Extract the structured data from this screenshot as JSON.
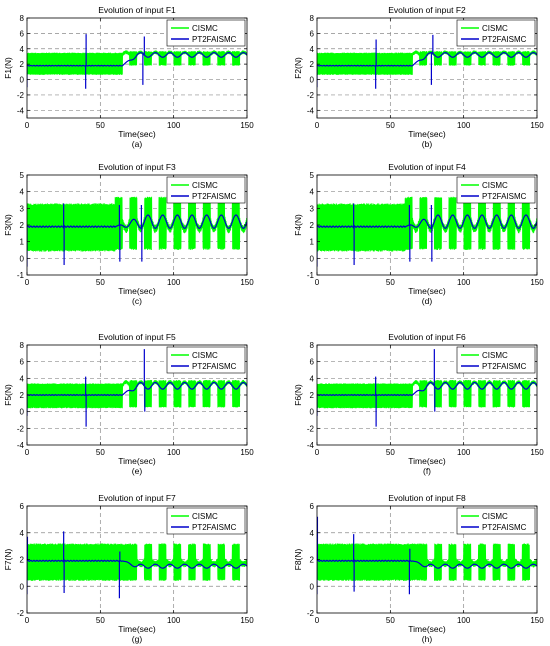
{
  "colors": {
    "cismc": "#00ff00",
    "pt2": "#0000cc",
    "grid": "#8c8c8c",
    "axis": "#000000"
  },
  "chart_data": [
    {
      "type": "line",
      "label": "(a)",
      "title": "Evolution of input F1",
      "xlabel": "Time(sec)",
      "ylabel": "F1(N)",
      "xlim": [
        0,
        150
      ],
      "ylim": [
        -5,
        8
      ],
      "xticks": [
        0,
        50,
        100,
        150
      ],
      "yticks": [
        -4,
        -2,
        0,
        2,
        4,
        6,
        8
      ],
      "grid": true,
      "legend_position": "top-right",
      "series": [
        {
          "name": "CISMC",
          "profile": {
            "pre_end": 65,
            "pre_lo": 0.6,
            "pre_hi": 3.5,
            "post_lo": 1.8,
            "post_hi": 3.7,
            "post_mean": 3.2,
            "amp": 0.3
          }
        },
        {
          "name": "PT2FAISMC",
          "profile": {
            "base": 1.8,
            "rise_start": 65,
            "rise_end": 75,
            "mean": 3.2,
            "amp": 0.3,
            "spikes": [
              {
                "t": 0,
                "v": -1.0
              },
              {
                "t": 40,
                "v": -1.2
              },
              {
                "t": 40.3,
                "v": 5.9
              },
              {
                "t": 79,
                "v": -0.7
              },
              {
                "t": 80,
                "v": 5.6
              }
            ]
          }
        }
      ]
    },
    {
      "type": "line",
      "label": "(b)",
      "title": "Evolution of input F2",
      "xlabel": "Time(sec)",
      "ylabel": "F2(N)",
      "xlim": [
        0,
        150
      ],
      "ylim": [
        -5,
        8
      ],
      "xticks": [
        0,
        50,
        100,
        150
      ],
      "yticks": [
        -4,
        -2,
        0,
        2,
        4,
        6,
        8
      ],
      "grid": true,
      "legend_position": "top-right",
      "series": [
        {
          "name": "CISMC",
          "profile": {
            "pre_end": 65,
            "pre_lo": 0.6,
            "pre_hi": 3.5,
            "post_lo": 1.8,
            "post_hi": 3.7,
            "post_mean": 3.2,
            "amp": 0.3
          }
        },
        {
          "name": "PT2FAISMC",
          "profile": {
            "base": 1.8,
            "rise_start": 65,
            "rise_end": 75,
            "mean": 3.2,
            "amp": 0.3,
            "spikes": [
              {
                "t": 0,
                "v": -1.0
              },
              {
                "t": 40,
                "v": -1.2
              },
              {
                "t": 40.3,
                "v": 5.2
              },
              {
                "t": 78,
                "v": -0.7
              },
              {
                "t": 79,
                "v": 5.8
              }
            ]
          }
        }
      ]
    },
    {
      "type": "line",
      "label": "(c)",
      "title": "Evolution of input F3",
      "xlabel": "Time(sec)",
      "ylabel": "F3(N)",
      "xlim": [
        0,
        150
      ],
      "ylim": [
        -1,
        5
      ],
      "xticks": [
        0,
        50,
        100,
        150
      ],
      "yticks": [
        -1,
        0,
        1,
        2,
        3,
        4,
        5
      ],
      "grid": true,
      "legend_position": "top-right",
      "series": [
        {
          "name": "CISMC",
          "profile": {
            "pre_end": 60,
            "pre_lo": 0.4,
            "pre_hi": 3.3,
            "post_lo": 0.5,
            "post_hi": 3.7,
            "post_mean": 2.2,
            "amp": 0.5
          }
        },
        {
          "name": "PT2FAISMC",
          "profile": {
            "base": 1.9,
            "rise_start": 60,
            "rise_end": 80,
            "mean": 2.2,
            "amp": 0.4,
            "spikes": [
              {
                "t": 0,
                "v": -0.5
              },
              {
                "t": 25,
                "v": 3.3
              },
              {
                "t": 25.3,
                "v": -0.4
              },
              {
                "t": 63,
                "v": 3.2
              },
              {
                "t": 63.3,
                "v": -0.2
              },
              {
                "t": 78,
                "v": 3.2
              },
              {
                "t": 78.3,
                "v": -0.2
              }
            ]
          }
        }
      ]
    },
    {
      "type": "line",
      "label": "(d)",
      "title": "Evolution of input F4",
      "xlabel": "Time(sec)",
      "ylabel": "F4(N)",
      "xlim": [
        0,
        150
      ],
      "ylim": [
        -1,
        5
      ],
      "xticks": [
        0,
        50,
        100,
        150
      ],
      "yticks": [
        -1,
        0,
        1,
        2,
        3,
        4,
        5
      ],
      "grid": true,
      "legend_position": "top-right",
      "series": [
        {
          "name": "CISMC",
          "profile": {
            "pre_end": 60,
            "pre_lo": 0.4,
            "pre_hi": 3.3,
            "post_lo": 0.5,
            "post_hi": 3.7,
            "post_mean": 2.2,
            "amp": 0.5
          }
        },
        {
          "name": "PT2FAISMC",
          "profile": {
            "base": 1.9,
            "rise_start": 60,
            "rise_end": 80,
            "mean": 2.2,
            "amp": 0.4,
            "spikes": [
              {
                "t": 0,
                "v": -0.5
              },
              {
                "t": 25,
                "v": 3.3
              },
              {
                "t": 25.3,
                "v": -0.4
              },
              {
                "t": 63,
                "v": 3.2
              },
              {
                "t": 63.3,
                "v": -0.2
              },
              {
                "t": 78,
                "v": 3.2
              },
              {
                "t": 78.3,
                "v": -0.2
              }
            ]
          }
        }
      ]
    },
    {
      "type": "line",
      "label": "(e)",
      "title": "Evolution of input F5",
      "xlabel": "Time(sec)",
      "ylabel": "F5(N)",
      "xlim": [
        0,
        150
      ],
      "ylim": [
        -4,
        8
      ],
      "xticks": [
        0,
        50,
        100,
        150
      ],
      "yticks": [
        -4,
        -2,
        0,
        2,
        4,
        6,
        8
      ],
      "grid": true,
      "legend_position": "top-right",
      "series": [
        {
          "name": "CISMC",
          "profile": {
            "pre_end": 65,
            "pre_lo": 0.4,
            "pre_hi": 3.4,
            "post_lo": 0.5,
            "post_hi": 3.8,
            "post_mean": 3.1,
            "amp": 0.4
          }
        },
        {
          "name": "PT2FAISMC",
          "profile": {
            "base": 2.0,
            "rise_start": 65,
            "rise_end": 75,
            "mean": 3.1,
            "amp": 0.4,
            "spikes": [
              {
                "t": 0,
                "v": -0.5
              },
              {
                "t": 40,
                "v": 4.2
              },
              {
                "t": 40.3,
                "v": -1.8
              },
              {
                "t": 80,
                "v": 7.5
              },
              {
                "t": 80.3,
                "v": 0.0
              }
            ]
          }
        }
      ]
    },
    {
      "type": "line",
      "label": "(f)",
      "title": "Evolution of input F6",
      "xlabel": "Time(sec)",
      "ylabel": "F6(N)",
      "xlim": [
        0,
        150
      ],
      "ylim": [
        -4,
        8
      ],
      "xticks": [
        0,
        50,
        100,
        150
      ],
      "yticks": [
        -4,
        -2,
        0,
        2,
        4,
        6,
        8
      ],
      "grid": true,
      "legend_position": "top-right",
      "series": [
        {
          "name": "CISMC",
          "profile": {
            "pre_end": 65,
            "pre_lo": 0.4,
            "pre_hi": 3.4,
            "post_lo": 0.5,
            "post_hi": 3.8,
            "post_mean": 3.1,
            "amp": 0.4
          }
        },
        {
          "name": "PT2FAISMC",
          "profile": {
            "base": 2.0,
            "rise_start": 65,
            "rise_end": 75,
            "mean": 3.1,
            "amp": 0.4,
            "spikes": [
              {
                "t": 0,
                "v": -0.5
              },
              {
                "t": 40,
                "v": 4.2
              },
              {
                "t": 40.3,
                "v": -1.8
              },
              {
                "t": 80,
                "v": 7.5
              },
              {
                "t": 80.3,
                "v": 0.0
              }
            ]
          }
        }
      ]
    },
    {
      "type": "line",
      "label": "(g)",
      "title": "Evolution of input F7",
      "xlabel": "Time(sec)",
      "ylabel": "F7(N)",
      "xlim": [
        0,
        150
      ],
      "ylim": [
        -2,
        6
      ],
      "xticks": [
        0,
        50,
        100,
        150
      ],
      "yticks": [
        -2,
        0,
        2,
        4,
        6
      ],
      "grid": true,
      "legend_position": "top-right",
      "series": [
        {
          "name": "CISMC",
          "profile": {
            "pre_end": 70,
            "pre_lo": 0.4,
            "pre_hi": 3.2,
            "post_lo": 0.4,
            "post_hi": 3.2,
            "post_mean": 1.8,
            "amp": 0.2
          }
        },
        {
          "name": "PT2FAISMC",
          "profile": {
            "base": 1.9,
            "rise_start": 65,
            "rise_end": 75,
            "mean": 1.5,
            "amp": 0.15,
            "spikes": [
              {
                "t": 0,
                "v": -0.6
              },
              {
                "t": 0.3,
                "v": 3.7
              },
              {
                "t": 25,
                "v": 4.1
              },
              {
                "t": 25.3,
                "v": -0.5
              },
              {
                "t": 63,
                "v": -0.9
              },
              {
                "t": 63.3,
                "v": 2.6
              }
            ]
          }
        }
      ]
    },
    {
      "type": "line",
      "label": "(h)",
      "title": "Evolution of input F8",
      "xlabel": "Time(sec)",
      "ylabel": "F8(N)",
      "xlim": [
        0,
        150
      ],
      "ylim": [
        -2,
        6
      ],
      "xticks": [
        0,
        50,
        100,
        150
      ],
      "yticks": [
        -2,
        0,
        2,
        4,
        6
      ],
      "grid": true,
      "legend_position": "top-right",
      "series": [
        {
          "name": "CISMC",
          "profile": {
            "pre_end": 70,
            "pre_lo": 0.4,
            "pre_hi": 3.2,
            "post_lo": 0.4,
            "post_hi": 3.2,
            "post_mean": 1.8,
            "amp": 0.2
          }
        },
        {
          "name": "PT2FAISMC",
          "profile": {
            "base": 1.9,
            "rise_start": 65,
            "rise_end": 75,
            "mean": 1.5,
            "amp": 0.15,
            "spikes": [
              {
                "t": 0,
                "v": -0.6
              },
              {
                "t": 0.3,
                "v": 5.2
              },
              {
                "t": 25,
                "v": 3.9
              },
              {
                "t": 25.3,
                "v": -0.4
              },
              {
                "t": 63,
                "v": -0.6
              },
              {
                "t": 63.3,
                "v": 2.8
              }
            ]
          }
        }
      ]
    }
  ]
}
